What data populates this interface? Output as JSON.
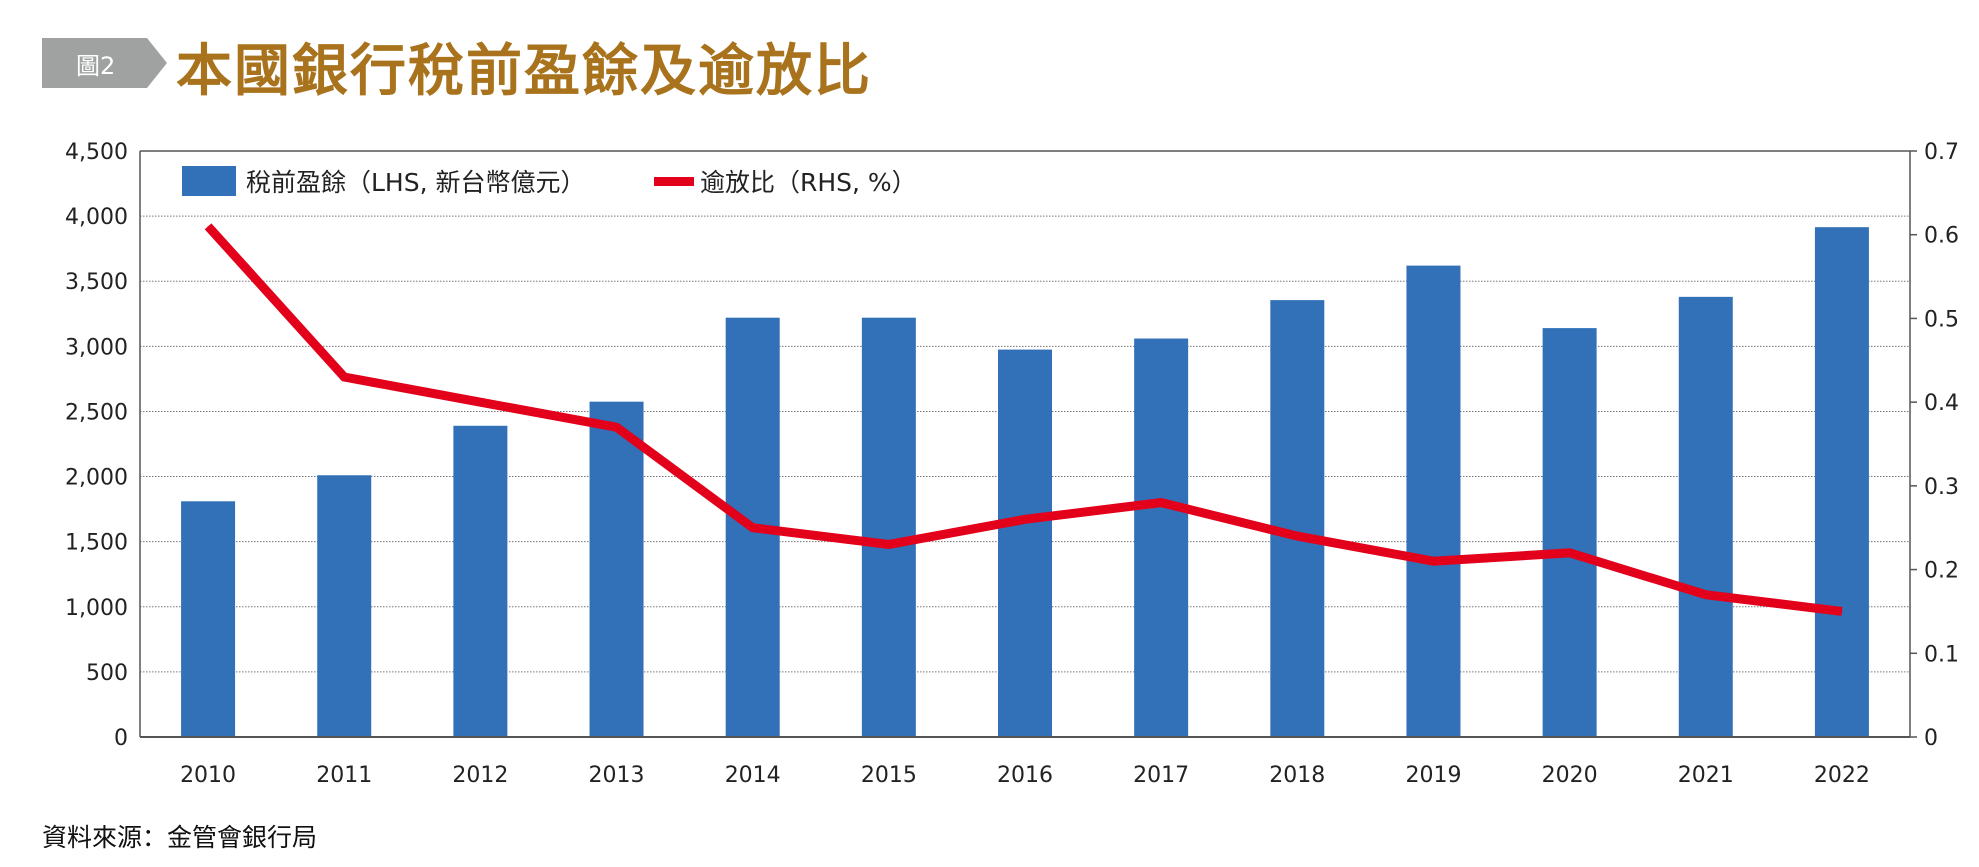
{
  "header": {
    "badge": "圖2",
    "title": "本國銀行稅前盈餘及逾放比"
  },
  "source": "資料來源：金管會銀行局",
  "colors": {
    "bar": "#3271b8",
    "line": "#e2001a",
    "title": "#a8731c",
    "badge": "#a0a2a2"
  },
  "chart_data": {
    "type": "bar+line",
    "title": "本國銀行稅前盈餘及逾放比",
    "categories": [
      "2010",
      "2011",
      "2012",
      "2013",
      "2014",
      "2015",
      "2016",
      "2017",
      "2018",
      "2019",
      "2020",
      "2021",
      "2022"
    ],
    "series": [
      {
        "name": "稅前盈餘（LHS, 新台幣億元）",
        "type": "bar",
        "axis": "left",
        "values": [
          1810,
          2010,
          2390,
          2575,
          3220,
          3220,
          2975,
          3060,
          3355,
          3620,
          3140,
          3380,
          3915
        ]
      },
      {
        "name": "逾放比（RHS, %）",
        "type": "line",
        "axis": "right",
        "values": [
          0.61,
          0.43,
          0.4,
          0.37,
          0.25,
          0.23,
          0.26,
          0.28,
          0.24,
          0.21,
          0.22,
          0.17,
          0.15
        ]
      }
    ],
    "y_left": {
      "range": [
        0,
        4500
      ],
      "ticks": [
        "0",
        "500",
        "1,000",
        "1,500",
        "2,000",
        "2,500",
        "3,000",
        "3,500",
        "4,000",
        "4,500"
      ]
    },
    "y_right": {
      "range": [
        0,
        0.7
      ],
      "ticks": [
        "0",
        "0.1",
        "0.2",
        "0.3",
        "0.4",
        "0.5",
        "0.6",
        "0.7"
      ]
    },
    "grid": true,
    "legend_position": "top-left"
  }
}
